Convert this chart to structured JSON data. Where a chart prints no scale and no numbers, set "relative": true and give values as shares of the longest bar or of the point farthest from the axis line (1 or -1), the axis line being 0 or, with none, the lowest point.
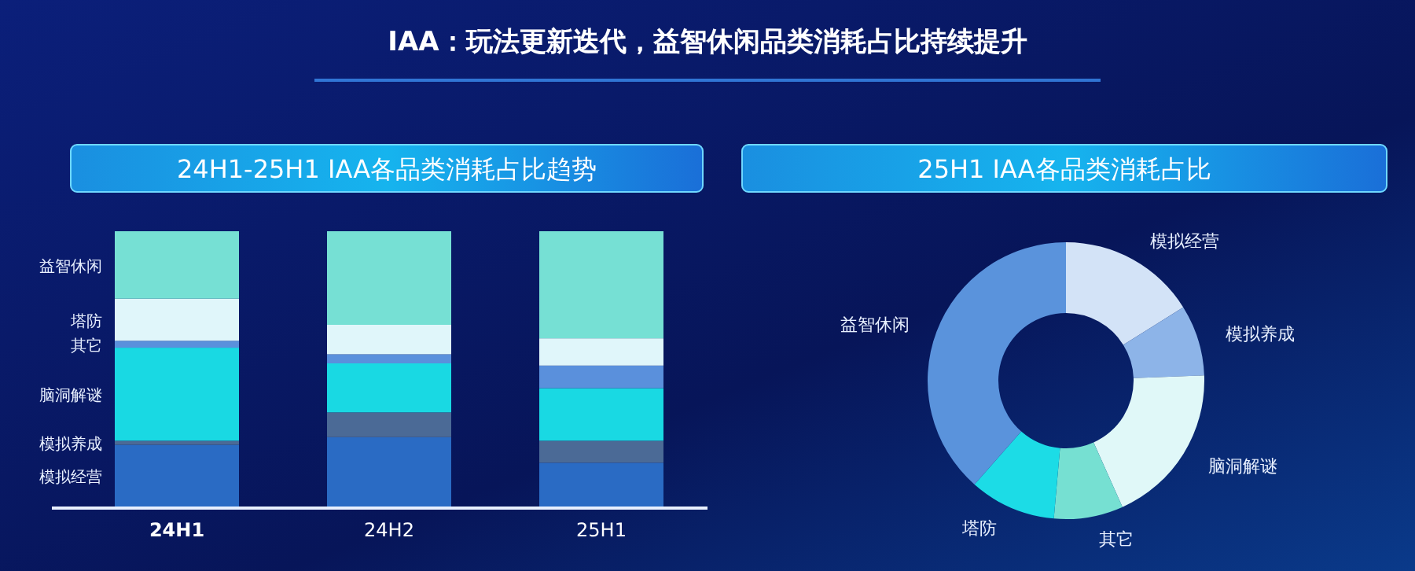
{
  "chart_data": [
    {
      "type": "bar",
      "title": "24H1-25H1 IAA各品类消耗占比趋势",
      "annotations": [
        "IAA：玩法更新迭代，益智休闲品类消耗占比持续提升"
      ],
      "relative": true,
      "stacked": true,
      "legend": "left",
      "categories": [
        "24H1",
        "24H2",
        "25H1"
      ],
      "series": [
        {
          "name": "模拟经营",
          "color": "#2a6bc4",
          "values": [
            0.224,
            0.252,
            0.159
          ]
        },
        {
          "name": "模拟养成",
          "color": "#4b6a96",
          "values": [
            0.015,
            0.09,
            0.08
          ]
        },
        {
          "name": "脑洞解谜",
          "color": "#19d9e3",
          "values": [
            0.338,
            0.178,
            0.191
          ]
        },
        {
          "name": "其它",
          "color": "#5a90dc",
          "values": [
            0.025,
            0.033,
            0.082
          ]
        },
        {
          "name": "塔防",
          "color": "#e0f6fa",
          "values": [
            0.153,
            0.107,
            0.099
          ]
        },
        {
          "name": "益智休闲",
          "color": "#76e0d4",
          "values": [
            0.245,
            0.34,
            0.389
          ]
        }
      ]
    },
    {
      "type": "donut",
      "title": "25H1 IAA各品类消耗占比",
      "categories": [
        "模拟经营",
        "模拟养成",
        "脑洞解谜",
        "其它",
        "塔防",
        "益智休闲"
      ],
      "values": [
        16.1,
        8.3,
        18.9,
        8.1,
        10.1,
        38.5
      ],
      "colors": [
        "#d3e3f7",
        "#8db4e8",
        "#e0f8f8",
        "#76e0d2",
        "#1cdce6",
        "#5a93dc"
      ]
    }
  ]
}
